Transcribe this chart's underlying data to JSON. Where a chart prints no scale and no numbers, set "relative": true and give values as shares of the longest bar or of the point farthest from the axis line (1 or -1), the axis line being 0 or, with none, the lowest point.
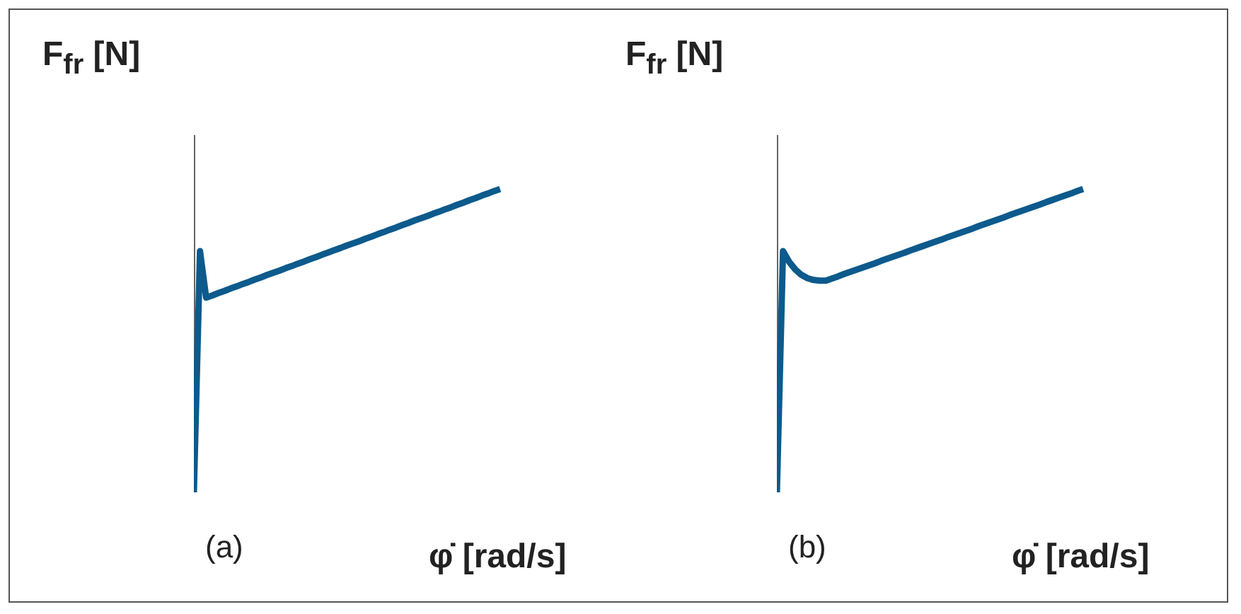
{
  "chart_data": [
    {
      "type": "line",
      "relative": true,
      "ylabel": "F$_{fr}$ [N]",
      "xlabel": "φ̇ [rad/s]",
      "annotations": [
        "(a)"
      ],
      "categories": [
        null,
        null,
        null,
        null,
        null,
        null,
        null,
        null,
        null,
        null,
        null,
        null,
        null,
        null,
        null,
        null,
        null,
        null,
        null,
        null,
        null,
        null,
        null,
        null,
        null,
        null,
        null,
        null,
        null,
        null,
        null,
        null,
        null,
        null,
        null,
        null,
        null,
        null,
        null,
        null,
        null,
        null,
        null,
        null,
        null,
        null,
        null,
        null,
        null,
        null,
        null,
        null,
        null,
        null,
        null,
        null,
        null,
        null,
        null,
        null,
        null,
        null,
        null,
        null,
        null,
        null,
        null,
        null,
        null,
        null,
        null
      ],
      "series": [
        {
          "color": "#0d5a8c",
          "values": [
            0,
            0.795,
            0.642,
            0.649,
            0.657,
            0.664,
            0.672,
            0.679,
            0.687,
            0.694,
            0.702,
            0.709,
            0.717,
            0.724,
            0.731,
            0.739,
            0.746,
            0.754,
            0.761,
            0.769,
            0.776,
            0.784,
            0.791,
            0.799,
            0.806,
            0.814,
            0.821,
            0.828,
            0.836,
            0.843,
            0.851,
            0.858,
            0.866,
            0.873,
            0.881,
            0.888,
            0.896,
            0.903,
            0.91,
            0.918,
            0.925,
            0.933,
            0.94,
            0.948,
            0.955,
            0.963,
            0.97,
            0.978,
            0.985,
            0.993,
            1,
            null,
            null,
            null,
            null,
            null,
            null,
            null,
            null,
            null,
            null,
            null,
            null,
            null,
            null,
            null,
            null,
            null,
            null,
            null,
            null
          ]
        }
      ]
    },
    {
      "type": "line",
      "relative": true,
      "ylabel": "F$_{fr}$ [N]",
      "xlabel": "φ̇ [rad/s]",
      "annotations": [
        "(b)"
      ],
      "categories": [
        null,
        null,
        null,
        null,
        null,
        null,
        null,
        null,
        null,
        null,
        null,
        null,
        null,
        null,
        null,
        null,
        null,
        null,
        null,
        null,
        null,
        null,
        null,
        null,
        null,
        null,
        null,
        null,
        null,
        null,
        null,
        null,
        null,
        null,
        null,
        null,
        null,
        null,
        null,
        null,
        null,
        null,
        null,
        null,
        null,
        null,
        null,
        null,
        null,
        null,
        null,
        null,
        null,
        null,
        null,
        null,
        null,
        null,
        null,
        null,
        null,
        null,
        null,
        null,
        null,
        null,
        null,
        null,
        null,
        null,
        null
      ],
      "series": [
        {
          "color": "#0d5a8c",
          "values": [
            0,
            0.795,
            0.76,
            0.735,
            0.717,
            0.706,
            0.7,
            0.698,
            0.698,
            0.705,
            0.712,
            0.72,
            0.727,
            0.734,
            0.741,
            0.748,
            0.755,
            0.763,
            0.77,
            0.777,
            0.784,
            0.791,
            0.799,
            0.806,
            0.813,
            0.82,
            0.827,
            0.834,
            0.842,
            0.849,
            0.856,
            0.863,
            0.87,
            0.878,
            0.885,
            0.892,
            0.899,
            0.906,
            0.914,
            0.921,
            0.928,
            0.935,
            0.942,
            0.949,
            0.957,
            0.964,
            0.971,
            0.978,
            0.985,
            0.993,
            1,
            null,
            null,
            null,
            null,
            null,
            null,
            null,
            null,
            null,
            null,
            null,
            null,
            null,
            null,
            null,
            null,
            null,
            null,
            null,
            null
          ]
        }
      ]
    }
  ]
}
